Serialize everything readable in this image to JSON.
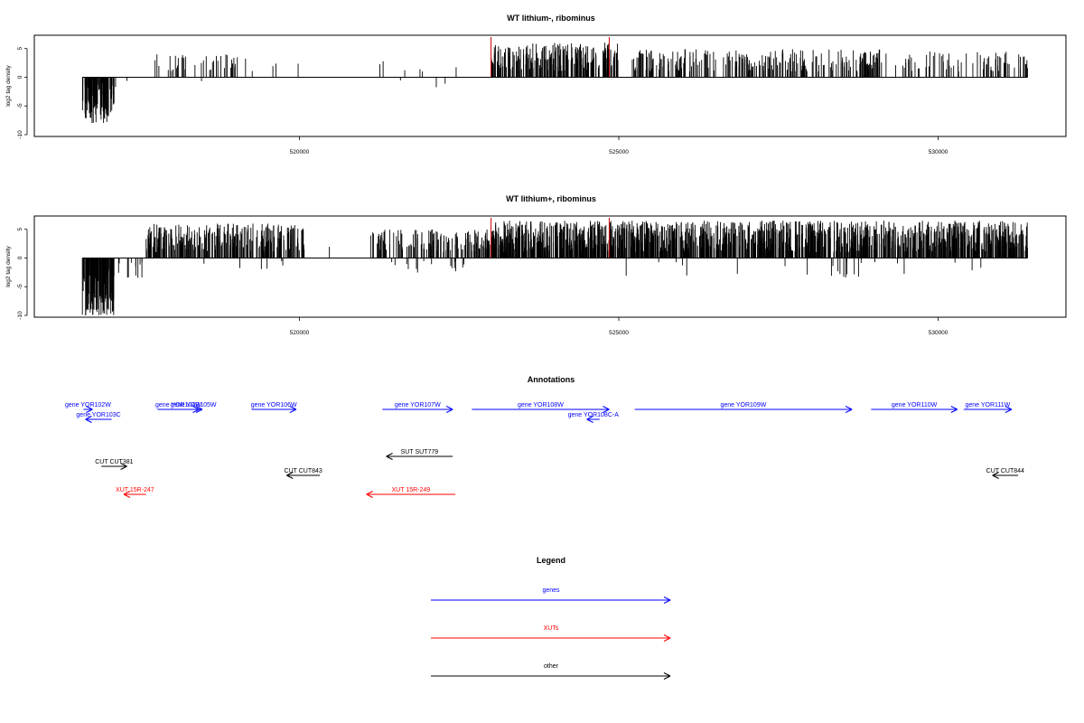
{
  "colors": {
    "gene": "#0000ff",
    "xut": "#ff0000",
    "other": "#000000",
    "marker": "#cc0000",
    "bars": "#000000"
  },
  "annotations_title": "Annotations",
  "legend_title": "Legend",
  "chart_data": [
    {
      "type": "bar",
      "title": "WT lithium-, ribominus",
      "ylabel": "log2 tag density",
      "xlim": [
        515850,
        532000
      ],
      "ylim": [
        -10,
        7
      ],
      "yticks": [
        -10,
        -5,
        0,
        5
      ],
      "xticks": [
        520000,
        525000,
        530000
      ],
      "xtick_labels": [
        "520000",
        "525000",
        "530000"
      ],
      "markers_x": [
        523000,
        524850
      ],
      "segments": [
        {
          "from": 516600,
          "to": 517100,
          "min": -8.0,
          "max": -1.0,
          "density": 3
        },
        {
          "from": 517100,
          "to": 517600,
          "min": -2.5,
          "max": -0.5,
          "density": 0.05
        },
        {
          "from": 517700,
          "to": 519300,
          "min": 1.0,
          "max": 4.0,
          "density": 0.35
        },
        {
          "from": 518400,
          "to": 518500,
          "min": -3.0,
          "max": -0.5,
          "density": 0.05
        },
        {
          "from": 519300,
          "to": 520000,
          "min": 1.0,
          "max": 3.0,
          "density": 0.06
        },
        {
          "from": 521100,
          "to": 521400,
          "min": 1.0,
          "max": 3.5,
          "density": 0.1
        },
        {
          "from": 521600,
          "to": 522600,
          "min": 1.0,
          "max": 2.5,
          "density": 0.06
        },
        {
          "from": 521500,
          "to": 522300,
          "min": -3.5,
          "max": -0.5,
          "density": 0.05
        },
        {
          "from": 523000,
          "to": 525000,
          "min": 1.0,
          "max": 6.0,
          "density": 1.6
        },
        {
          "from": 525200,
          "to": 529200,
          "min": 1.0,
          "max": 5.0,
          "density": 0.9
        },
        {
          "from": 529300,
          "to": 531400,
          "min": 1.0,
          "max": 4.5,
          "density": 0.5
        }
      ]
    },
    {
      "type": "bar",
      "title": "WT lithium+, ribominus",
      "ylabel": "log2 tag density",
      "xlim": [
        515850,
        532000
      ],
      "ylim": [
        -10,
        7
      ],
      "yticks": [
        -10,
        -5,
        0,
        5
      ],
      "xticks": [
        520000,
        525000,
        530000
      ],
      "xtick_labels": [
        "520000",
        "525000",
        "530000"
      ],
      "markers_x": [
        523000,
        524850
      ],
      "segments": [
        {
          "from": 516600,
          "to": 517100,
          "min": -10.0,
          "max": -1.5,
          "density": 4
        },
        {
          "from": 517100,
          "to": 517700,
          "min": -3.5,
          "max": -0.5,
          "density": 0.25
        },
        {
          "from": 517600,
          "to": 520100,
          "min": 1.0,
          "max": 6.0,
          "density": 1.5
        },
        {
          "from": 518000,
          "to": 519800,
          "min": -2.0,
          "max": -0.5,
          "density": 0.05
        },
        {
          "from": 520200,
          "to": 520600,
          "min": 1.0,
          "max": 2.5,
          "density": 0.05
        },
        {
          "from": 521100,
          "to": 523000,
          "min": 1.0,
          "max": 5.0,
          "density": 1.0
        },
        {
          "from": 521400,
          "to": 522600,
          "min": -3.0,
          "max": -0.5,
          "density": 0.18
        },
        {
          "from": 523000,
          "to": 531400,
          "min": 1.0,
          "max": 6.5,
          "density": 2.2
        },
        {
          "from": 524900,
          "to": 530900,
          "min": -3.5,
          "max": -0.5,
          "density": 0.06
        }
      ]
    }
  ],
  "gene_annotations": [
    {
      "label": "gene YOR102W",
      "from": 516620,
      "to": 516760,
      "dir": "right",
      "cls": "gene",
      "row": 0
    },
    {
      "label": "gene YOR103C",
      "from": 516650,
      "to": 517060,
      "dir": "left",
      "cls": "gene",
      "row": 1
    },
    {
      "label": "gene YOR104W",
      "from": 517780,
      "to": 518430,
      "dir": "right",
      "cls": "gene",
      "row": 0
    },
    {
      "label": "gene YOR105W",
      "from": 518200,
      "to": 518480,
      "dir": "right",
      "cls": "gene",
      "row": 0
    },
    {
      "label": "gene YOR106W",
      "from": 519250,
      "to": 519950,
      "dir": "right",
      "cls": "gene",
      "row": 0
    },
    {
      "label": "gene YOR107W",
      "from": 521300,
      "to": 522400,
      "dir": "right",
      "cls": "gene",
      "row": 0
    },
    {
      "label": "gene YOR108W",
      "from": 522700,
      "to": 524850,
      "dir": "right",
      "cls": "gene",
      "row": 0
    },
    {
      "label": "gene YOR108C-A",
      "from": 524500,
      "to": 524700,
      "dir": "left",
      "cls": "gene",
      "row": 1
    },
    {
      "label": "gene YOR109W",
      "from": 525250,
      "to": 528650,
      "dir": "right",
      "cls": "gene",
      "row": 0
    },
    {
      "label": "gene YOR110W",
      "from": 528950,
      "to": 530300,
      "dir": "right",
      "cls": "gene",
      "row": 0
    },
    {
      "label": "gene YOR111W",
      "from": 530400,
      "to": 531150,
      "dir": "right",
      "cls": "gene",
      "row": 0
    }
  ],
  "other_annotations": [
    {
      "label": "CUT CUT381",
      "from": 516900,
      "to": 517300,
      "dir": "right",
      "cls": "other",
      "row": 3
    },
    {
      "label": "SUT SUT779",
      "from": 521360,
      "to": 522400,
      "dir": "left",
      "cls": "other",
      "row": 2
    },
    {
      "label": "CUT CUT843",
      "from": 519800,
      "to": 520320,
      "dir": "left",
      "cls": "other",
      "row": 4
    },
    {
      "label": "CUT CUT844",
      "from": 530850,
      "to": 531250,
      "dir": "left",
      "cls": "other",
      "row": 4
    },
    {
      "label": "XUT 15R-247",
      "from": 517250,
      "to": 517600,
      "dir": "left",
      "cls": "xut",
      "row": 5
    },
    {
      "label": "XUT 15R-249",
      "from": 521050,
      "to": 522440,
      "dir": "left",
      "cls": "xut",
      "row": 5
    }
  ],
  "legend": [
    {
      "label": "genes",
      "cls": "gene"
    },
    {
      "label": "XUTs",
      "cls": "xut"
    },
    {
      "label": "other",
      "cls": "other"
    }
  ]
}
